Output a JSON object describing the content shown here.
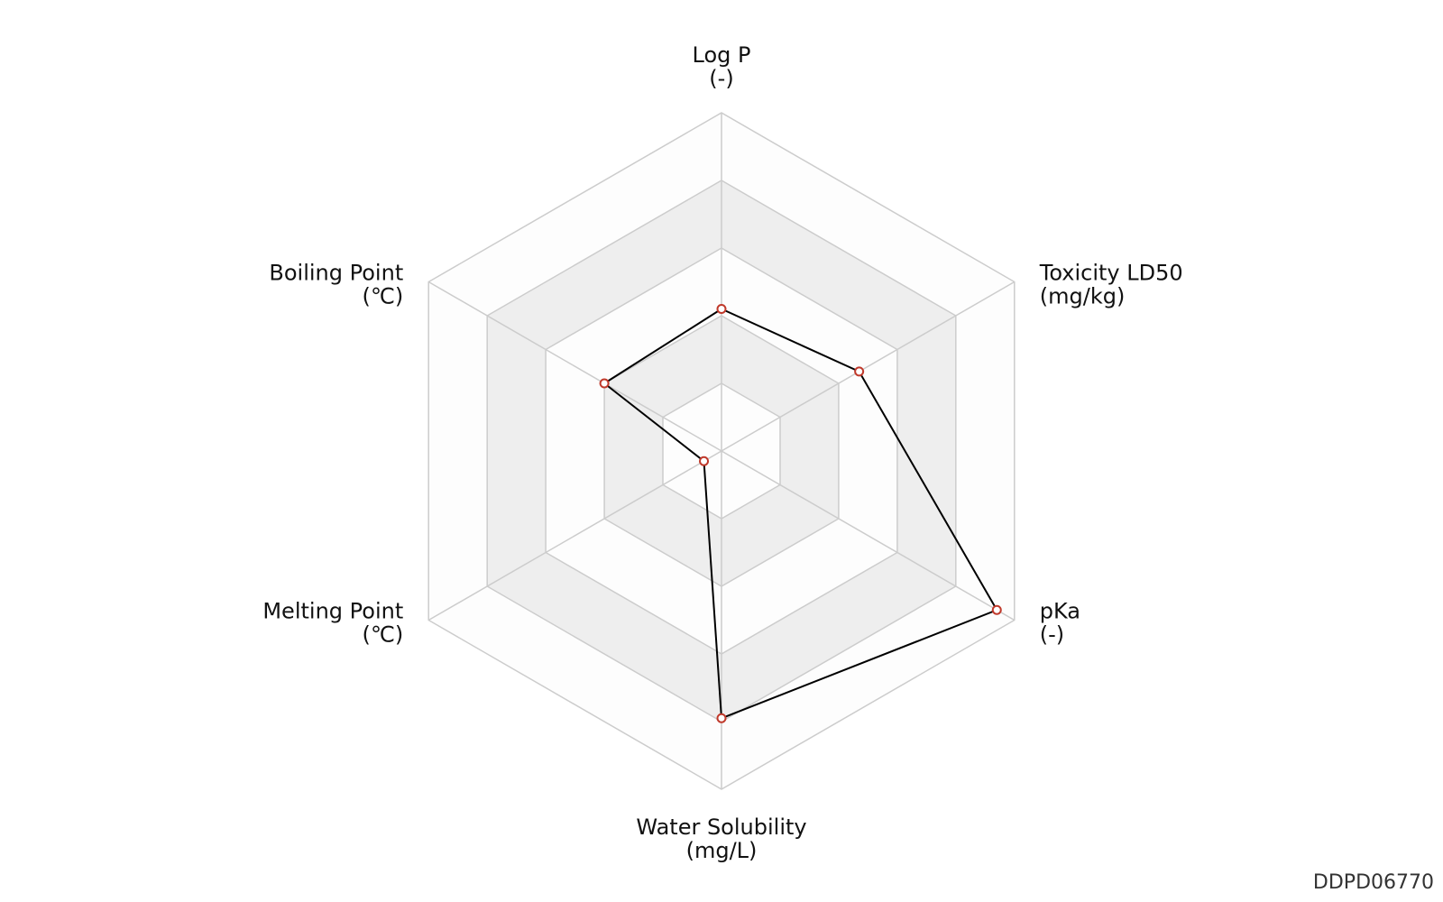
{
  "chart_data": {
    "type": "radar",
    "categories": [
      "Log P",
      "Toxicity LD50",
      "pKa",
      "Water Solubility",
      "Melting Point",
      "Boiling Point"
    ],
    "units": [
      "(-)",
      "(mg/kg)",
      "(-)",
      "(mg/L)",
      "(℃)",
      "(℃)"
    ],
    "values": [
      0.42,
      0.47,
      0.94,
      0.79,
      0.06,
      0.4
    ],
    "rlim": [
      0,
      1
    ],
    "rticks": [
      0.2,
      0.4,
      0.6,
      0.8,
      1.0
    ],
    "line_color": "#000000",
    "marker_color": "#c0392b",
    "band_colors": [
      "#fdfdfd",
      "#eeeeee"
    ]
  },
  "watermark": "DDPD06770"
}
